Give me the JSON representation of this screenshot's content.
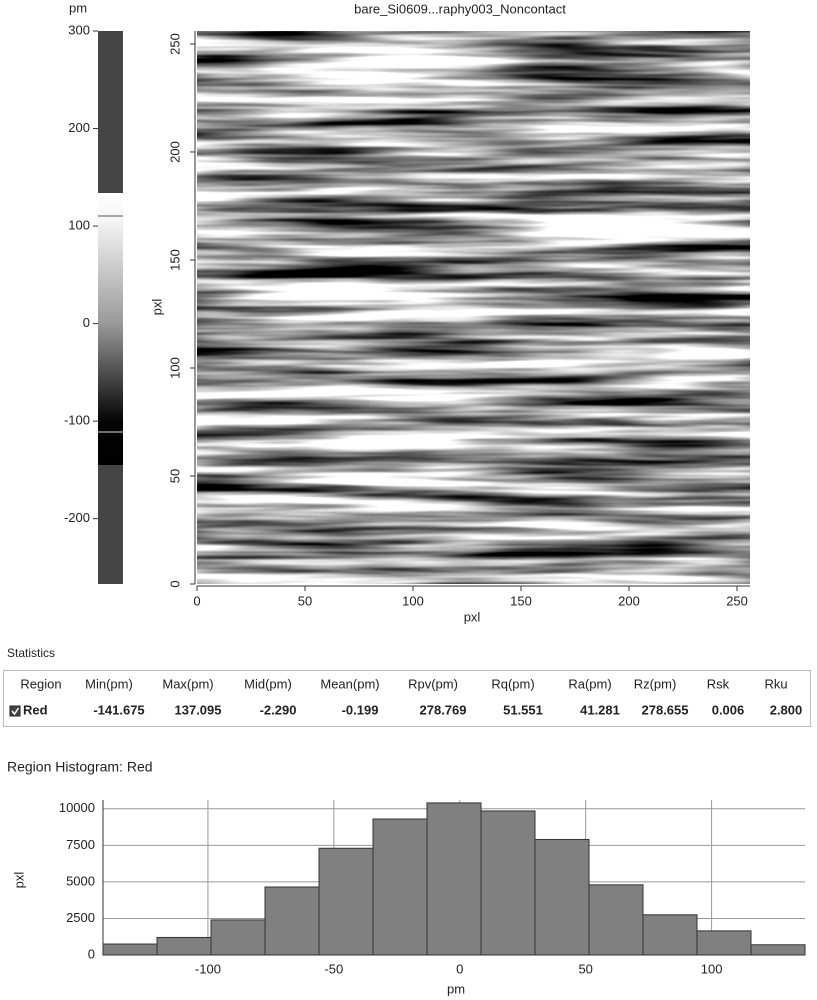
{
  "colorbar": {
    "unit": "pm",
    "lim": [
      -267,
      300
    ],
    "ticks": [
      300,
      200,
      100,
      0,
      -100,
      -200
    ]
  },
  "image": {
    "title": "bare_Si0609...raphy003_Noncontact",
    "xlabel": "pxl",
    "ylabel": "pxl",
    "xlim": [
      0,
      256
    ],
    "ylim": [
      0,
      256
    ],
    "xticks": [
      0,
      50,
      100,
      150,
      200,
      250
    ],
    "yticks": [
      0,
      50,
      100,
      150,
      200,
      250
    ]
  },
  "statistics": {
    "title": "Statistics",
    "columns": [
      "Region",
      "Min(pm)",
      "Max(pm)",
      "Mid(pm)",
      "Mean(pm)",
      "Rpv(pm)",
      "Rq(pm)",
      "Ra(pm)",
      "Rz(pm)",
      "Rsk",
      "Rku"
    ],
    "rows": [
      [
        "Red",
        "-141.675",
        "137.095",
        "-2.290",
        "-0.199",
        "278.769",
        "51.551",
        "41.281",
        "278.655",
        "0.006",
        "2.800"
      ]
    ]
  },
  "chart_data": {
    "type": "histogram",
    "title": "Region Histogram: Red",
    "xlabel": "pm",
    "ylabel": "pxl",
    "bins": [
      -141.675,
      -120.231,
      -98.787,
      -77.343,
      -55.899,
      -34.455,
      -13.011,
      8.433,
      29.877,
      51.321,
      72.765,
      94.209,
      115.653,
      137.095
    ],
    "values": [
      750,
      1200,
      2400,
      4650,
      7300,
      9300,
      10400,
      9850,
      7900,
      4800,
      2750,
      1650,
      700
    ],
    "color": "#808080",
    "xlim": [
      -141.675,
      137.095
    ],
    "ylim": [
      0,
      10600
    ],
    "xticks": [
      -100,
      -50,
      0,
      50,
      100
    ],
    "yticks": [
      0,
      2500,
      5000,
      7500,
      10000
    ],
    "grid": true
  }
}
